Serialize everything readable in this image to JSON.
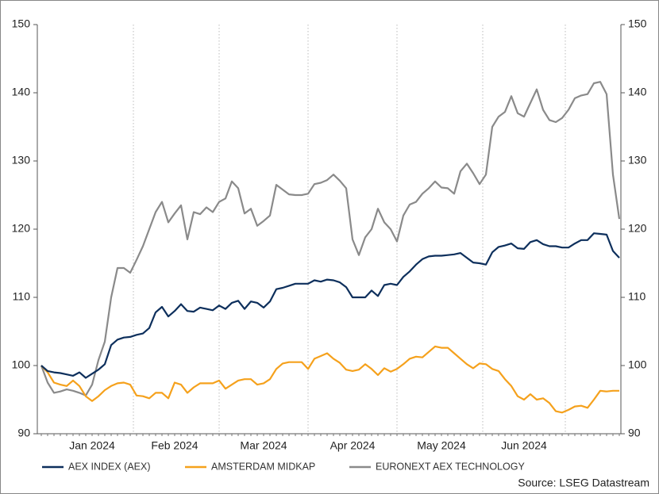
{
  "chart_data": {
    "type": "line",
    "categories": [
      null,
      null,
      null,
      null,
      null,
      null,
      null,
      null,
      "Jan 2024",
      null,
      null,
      null,
      null,
      null,
      null,
      null,
      null,
      null,
      null,
      null,
      null,
      "Feb 2024",
      null,
      null,
      null,
      null,
      null,
      null,
      null,
      null,
      null,
      null,
      null,
      null,
      null,
      "Mar 2024",
      null,
      null,
      null,
      null,
      null,
      null,
      null,
      null,
      null,
      null,
      null,
      null,
      null,
      "Apr 2024",
      null,
      null,
      null,
      null,
      null,
      null,
      null,
      null,
      null,
      null,
      null,
      null,
      null,
      "May 2024",
      null,
      null,
      null,
      null,
      null,
      null,
      null,
      null,
      null,
      null,
      null,
      null,
      "Jun 2024",
      null,
      null,
      null,
      null,
      null,
      null,
      null,
      null,
      null,
      null,
      null,
      null,
      null,
      null,
      null
    ],
    "series": [
      {
        "name": "AEX INDEX (AEX)",
        "color": "#0d2f5c",
        "values": [
          100,
          99.2,
          99,
          98.9,
          98.7,
          98.5,
          99,
          98.2,
          98.8,
          99.4,
          100.2,
          103,
          103.8,
          104.1,
          104.2,
          104.5,
          104.7,
          105.5,
          107.8,
          108.6,
          107.2,
          108,
          109,
          108,
          107.9,
          108.5,
          108.3,
          108.1,
          108.8,
          108.3,
          109.2,
          109.5,
          108.3,
          109.4,
          109.2,
          108.5,
          109.4,
          111.2,
          111.4,
          111.7,
          112,
          112,
          112,
          112.5,
          112.3,
          112.6,
          112.5,
          112.2,
          111.5,
          110,
          110,
          110,
          111,
          110.2,
          111.8,
          112,
          111.8,
          113,
          113.8,
          114.8,
          115.6,
          116,
          116.1,
          116.1,
          116.2,
          116.3,
          116.5,
          115.8,
          115.1,
          115,
          114.8,
          116.6,
          117.4,
          117.6,
          117.9,
          117.2,
          117.1,
          118.1,
          118.4,
          117.8,
          117.5,
          117.5,
          117.3,
          117.3,
          117.9,
          118.4,
          118.4,
          119.4,
          119.3,
          119.2,
          116.8,
          115.8
        ]
      },
      {
        "name": "AMSTERDAM MIDKAP",
        "color": "#f5a11c",
        "values": [
          100,
          99,
          97.5,
          97.2,
          97,
          97.8,
          97,
          95.5,
          94.8,
          95.5,
          96.4,
          97,
          97.4,
          97.5,
          97.2,
          95.6,
          95.5,
          95.2,
          96,
          96,
          95.2,
          97.5,
          97.2,
          96,
          96.8,
          97.4,
          97.4,
          97.4,
          97.8,
          96.6,
          97.2,
          97.8,
          98,
          98,
          97.2,
          97.4,
          98,
          99.5,
          100.3,
          100.5,
          100.5,
          100.5,
          99.5,
          101,
          101.4,
          101.8,
          101,
          100.4,
          99.4,
          99.2,
          99.4,
          100.2,
          99.5,
          98.6,
          99.6,
          99.1,
          99.5,
          100.2,
          101,
          101.3,
          101.2,
          102,
          102.8,
          102.6,
          102.6,
          101.8,
          101,
          100.2,
          99.6,
          100.3,
          100.2,
          99.5,
          99.2,
          98,
          97,
          95.5,
          95,
          95.8,
          95,
          95.2,
          94.5,
          93.3,
          93.1,
          93.5,
          94,
          94.1,
          93.8,
          95,
          96.3,
          96.2,
          96.3,
          96.3
        ]
      },
      {
        "name": "EURONEXT AEX TECHNOLOGY",
        "color": "#8a8a8a",
        "values": [
          100,
          97.5,
          96,
          96.2,
          96.5,
          96.3,
          96,
          95.6,
          97.2,
          100.8,
          103.5,
          110,
          114.3,
          114.3,
          113.6,
          115.5,
          117.5,
          120,
          122.5,
          124,
          121,
          122.3,
          123.5,
          118.5,
          122.5,
          122.2,
          123.2,
          122.5,
          124,
          124.5,
          127,
          126,
          122.3,
          123,
          120.5,
          121.2,
          122,
          126.5,
          125.8,
          125.1,
          125,
          125,
          125.2,
          126.6,
          126.8,
          127.2,
          128,
          127.1,
          126,
          118.5,
          116.2,
          118.8,
          120,
          123,
          121,
          120,
          118.2,
          122,
          123.6,
          124,
          125.2,
          126,
          127,
          126.1,
          126,
          125.2,
          128.5,
          129.6,
          128.2,
          126.6,
          128,
          135,
          136.5,
          137.2,
          139.5,
          137,
          136.5,
          138.5,
          140.5,
          137.5,
          136,
          135.7,
          136.3,
          137.5,
          139.2,
          139.6,
          139.8,
          141.4,
          141.6,
          139.8,
          128,
          121.5
        ]
      }
    ],
    "ylim": [
      90,
      150
    ],
    "yticks": [
      90,
      100,
      110,
      120,
      130,
      140,
      150
    ],
    "y2lim": [
      90,
      150
    ],
    "y2ticks": [
      90,
      100,
      110,
      120,
      130,
      140,
      150
    ],
    "grid": true,
    "legend": "bottom",
    "source": "Source: LSEG Datastream"
  }
}
